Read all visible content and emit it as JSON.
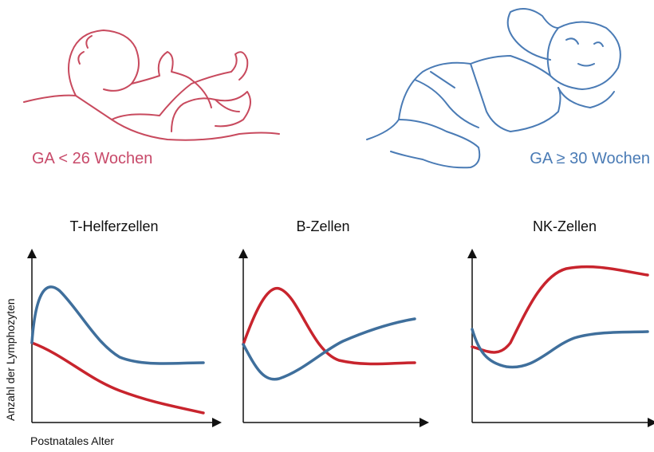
{
  "infants": [
    {
      "label": "GA < 26 Wochen"
    },
    {
      "label": "GA ≥ 30 Wochen"
    }
  ],
  "panels": [
    {
      "title": "T-Helferzellen"
    },
    {
      "title": "B-Zellen"
    },
    {
      "title": "NK-Zellen"
    }
  ],
  "y_axis_label": "Anzahl der Lymphozyten",
  "x_axis_label": "Postnatales Alter"
}
